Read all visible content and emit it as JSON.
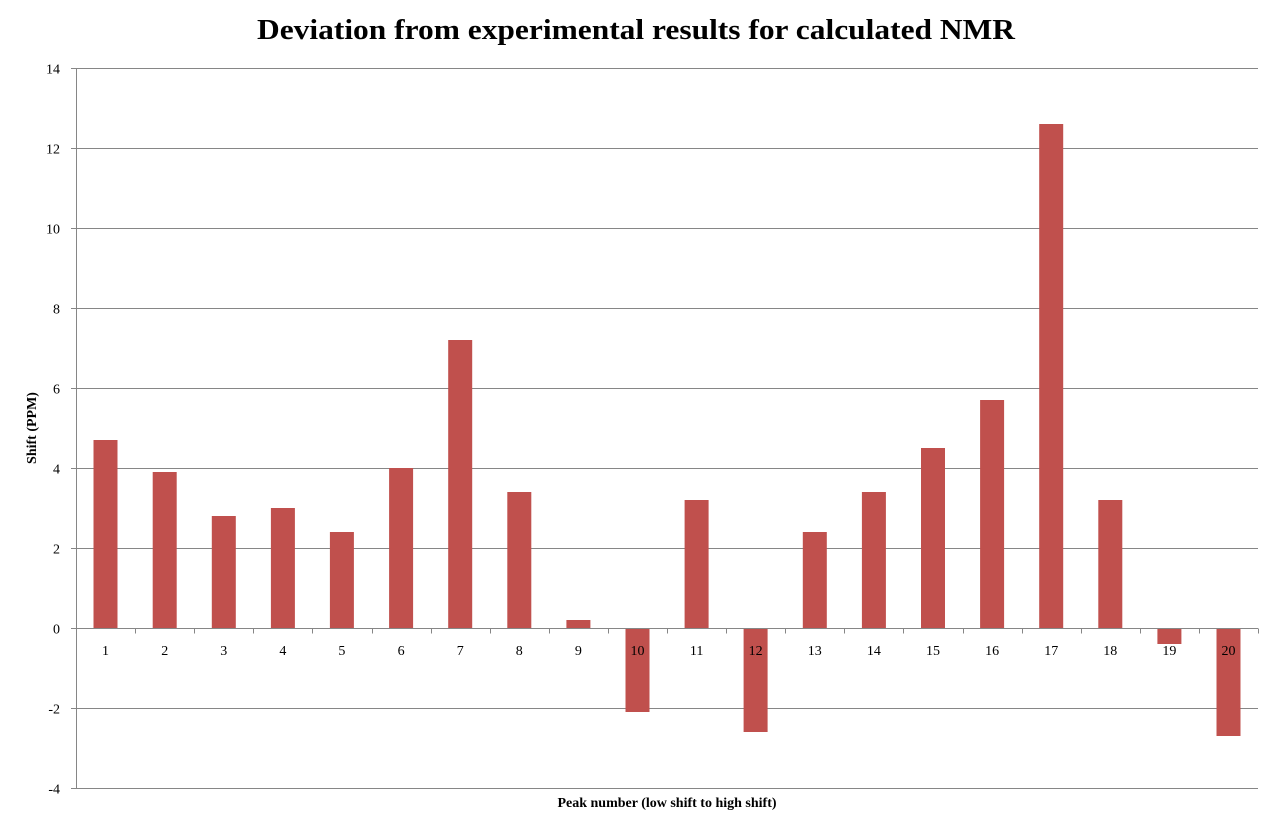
{
  "chart_data": {
    "type": "bar",
    "title": "Deviation from experimental results for calculated NMR",
    "xlabel": "Peak number  (low shift to high shift)",
    "ylabel": "Shift (PPM)",
    "categories": [
      "1",
      "2",
      "3",
      "4",
      "5",
      "6",
      "7",
      "8",
      "9",
      "10",
      "11",
      "12",
      "13",
      "14",
      "15",
      "16",
      "17",
      "18",
      "19",
      "20"
    ],
    "values": [
      4.7,
      3.9,
      2.8,
      3.0,
      2.4,
      4.0,
      7.2,
      3.4,
      0.2,
      -2.1,
      3.2,
      -2.6,
      2.4,
      3.4,
      4.5,
      5.7,
      12.6,
      3.2,
      -0.4,
      -2.7
    ],
    "ylim": [
      -4,
      14
    ],
    "yticks": [
      -4,
      -2,
      0,
      2,
      4,
      6,
      8,
      10,
      12,
      14
    ],
    "grid": true,
    "legend": "none",
    "bar_color": "#c0504d",
    "grid_color": "#868686"
  }
}
